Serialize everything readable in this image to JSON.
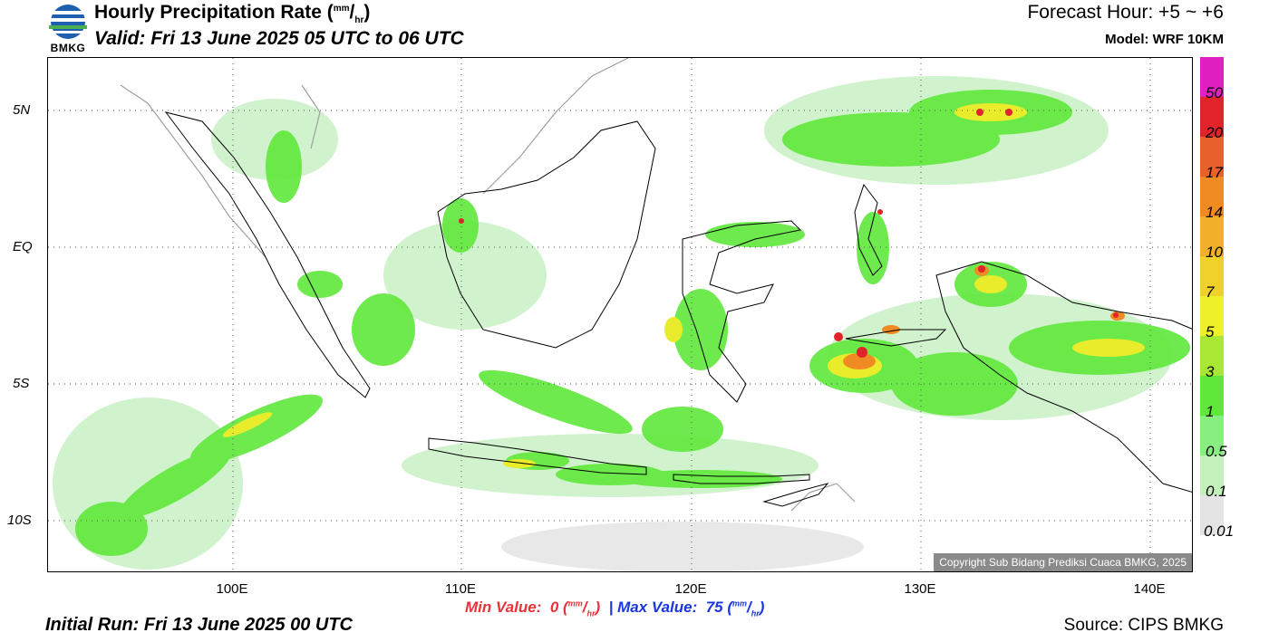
{
  "header": {
    "logo_text": "BMKG",
    "title_main": "Hourly Precipitation Rate (",
    "title_unit_num": "mm",
    "title_unit_sep": "/",
    "title_unit_den": "hr",
    "title_close": ")",
    "valid": "Valid: Fri 13 June 2025 05 UTC to 06 UTC",
    "forecast_hour": "Forecast Hour: +5 ~ +6",
    "model": "Model: WRF 10KM"
  },
  "map": {
    "lat_labels": [
      "5N",
      "EQ",
      "5S",
      "10S"
    ],
    "lon_labels": [
      "100E",
      "110E",
      "120E",
      "130E",
      "140E"
    ],
    "copyright": "Copyright Sub Bidang Prediksi Cuaca BMKG, 2025",
    "colors": {
      "coast": "#000000",
      "neighbor_land": "#a0a0a0",
      "rain_light": "#c8f0c4",
      "rain_green": "#5fe83a",
      "rain_yellow": "#e8ec2a",
      "rain_orange": "#f08a22",
      "rain_red": "#e0242a"
    }
  },
  "colorbar": {
    "labels": [
      "50",
      "20",
      "17",
      "14",
      "10",
      "7",
      "5",
      "3",
      "1",
      "0.5",
      "0.1",
      "0.01"
    ],
    "colors": [
      "#e020c0",
      "#e0242a",
      "#e8602a",
      "#f08a22",
      "#f0b02a",
      "#f0d02a",
      "#eef02a",
      "#a8e832",
      "#5fe83a",
      "#88ee80",
      "#c4f0bc",
      "#e4e4e4"
    ]
  },
  "footer": {
    "min_label": "Min Value:",
    "min_value": "0",
    "max_label": "Max Value:",
    "max_value": "75",
    "unit_num": "mm",
    "unit_sep": "/",
    "unit_den": "hr",
    "initial_run": "Initial Run: Fri 13 June 2025 00 UTC",
    "source": "Source: CIPS BMKG"
  }
}
